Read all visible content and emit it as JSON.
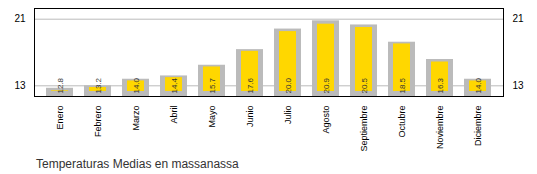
{
  "chart_data": {
    "type": "bar",
    "title": "Temperaturas Medias en massanassa",
    "categories": [
      "Enero",
      "Febrero",
      "Marzo",
      "Abril",
      "Mayo",
      "Junio",
      "Julio",
      "Agosto",
      "Septiembre",
      "Octubre",
      "Noviembre",
      "Diciembre"
    ],
    "series": [
      {
        "color": "#BBBBBB",
        "values": [
          12.5,
          12.8,
          13.6,
          14.0,
          15.3,
          17.2,
          19.7,
          20.7,
          20.2,
          18.1,
          16.0,
          13.6
        ]
      },
      {
        "color": "#FFD700",
        "values": [
          12.8,
          13.2,
          14.0,
          14.4,
          15.7,
          17.6,
          20.0,
          20.9,
          20.5,
          18.5,
          16.3,
          14.0
        ],
        "value_labels": [
          "12.8",
          "13.2",
          "14.0",
          "14.4",
          "15.7",
          "17.6",
          "20.0",
          "20.9",
          "20.5",
          "18.5",
          "16.3",
          "14.0"
        ],
        "data_labels": true
      }
    ],
    "ylim": [
      11.5,
      22.2
    ],
    "yticks": [
      12.8,
      20.9
    ],
    "grid": true
  }
}
